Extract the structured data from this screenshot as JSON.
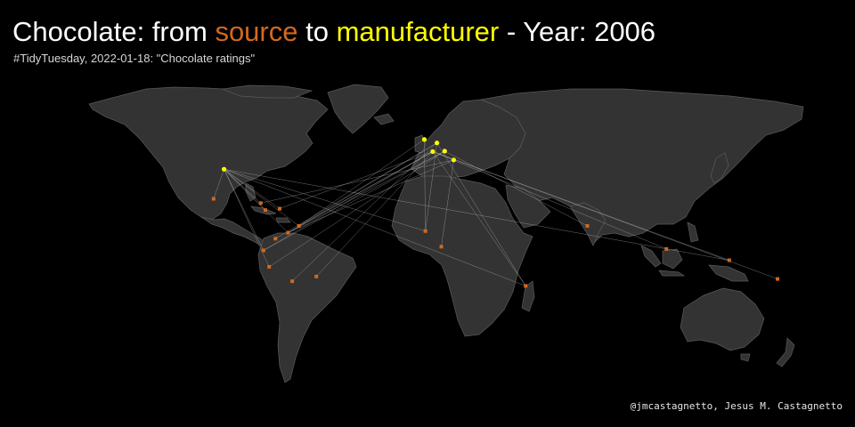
{
  "title": {
    "prefix": "Chocolate: from ",
    "source_word": "source",
    "middle": " to ",
    "manufacturer_word": "manufacturer",
    "suffix": " - Year: ",
    "year": "2006"
  },
  "subtitle": "#TidyTuesday, 2022-01-18: \"Chocolate ratings\"",
  "caption": "@jmcastagnetto, Jesus M. Castagnetto",
  "colors": {
    "background": "#000000",
    "land": "#333333",
    "border": "#5a5a5a",
    "source": "#d2691e",
    "manufacturer": "#ffff00",
    "flow": "#c8c8c8"
  },
  "map_data": {
    "projection": "equirectangular",
    "manufacturers": [
      {
        "name": "U.S.A.",
        "lon": -97,
        "lat": 38
      },
      {
        "name": "U.K.",
        "lon": -1.5,
        "lat": 52.5
      },
      {
        "name": "Belgium",
        "lon": 4.5,
        "lat": 50.8
      },
      {
        "name": "France",
        "lon": 2.5,
        "lat": 46.6
      },
      {
        "name": "Switzerland",
        "lon": 8.2,
        "lat": 46.8
      },
      {
        "name": "Italy",
        "lon": 12.5,
        "lat": 42.5
      }
    ],
    "sources": [
      {
        "name": "Mexico",
        "lon": -102,
        "lat": 23.6
      },
      {
        "name": "Cuba",
        "lon": -79.5,
        "lat": 21.5
      },
      {
        "name": "Jamaica",
        "lon": -77.3,
        "lat": 18.1
      },
      {
        "name": "Dominican Republic",
        "lon": -70.5,
        "lat": 18.8
      },
      {
        "name": "Trinidad",
        "lon": -61.3,
        "lat": 10.4
      },
      {
        "name": "Venezuela",
        "lon": -66.5,
        "lat": 7.1
      },
      {
        "name": "Colombia",
        "lon": -72.5,
        "lat": 4.2
      },
      {
        "name": "Ecuador",
        "lon": -78.2,
        "lat": -1.5
      },
      {
        "name": "Peru",
        "lon": -75.5,
        "lat": -9.5
      },
      {
        "name": "Bolivia",
        "lon": -64.5,
        "lat": -16.5
      },
      {
        "name": "Brazil",
        "lon": -53,
        "lat": -14.2
      },
      {
        "name": "Ghana",
        "lon": -1.0,
        "lat": 7.9
      },
      {
        "name": "Sao Tome",
        "lon": 6.6,
        "lat": 0.3
      },
      {
        "name": "Madagascar",
        "lon": 46.8,
        "lat": -18.8
      },
      {
        "name": "India",
        "lon": 76.2,
        "lat": 10.4
      },
      {
        "name": "Indonesia",
        "lon": 113.9,
        "lat": -0.8
      },
      {
        "name": "Papua New Guinea",
        "lon": 143.9,
        "lat": -6.3
      },
      {
        "name": "Vanuatu",
        "lon": 166.9,
        "lat": -15.4
      }
    ],
    "flows": [
      [
        "Mexico",
        "U.S.A."
      ],
      [
        "Cuba",
        "U.S.A."
      ],
      [
        "Jamaica",
        "U.S.A."
      ],
      [
        "Dominican Republic",
        "U.S.A."
      ],
      [
        "Venezuela",
        "U.S.A."
      ],
      [
        "Ecuador",
        "U.S.A."
      ],
      [
        "Peru",
        "U.S.A."
      ],
      [
        "Madagascar",
        "U.S.A."
      ],
      [
        "Ghana",
        "U.S.A."
      ],
      [
        "Trinidad",
        "U.S.A."
      ],
      [
        "Papua New Guinea",
        "U.S.A."
      ],
      [
        "Venezuela",
        "France"
      ],
      [
        "Venezuela",
        "Belgium"
      ],
      [
        "Venezuela",
        "Italy"
      ],
      [
        "Venezuela",
        "Switzerland"
      ],
      [
        "Ecuador",
        "France"
      ],
      [
        "Ecuador",
        "Switzerland"
      ],
      [
        "Trinidad",
        "U.K."
      ],
      [
        "Trinidad",
        "France"
      ],
      [
        "Dominican Republic",
        "France"
      ],
      [
        "Colombia",
        "Belgium"
      ],
      [
        "Peru",
        "Switzerland"
      ],
      [
        "Bolivia",
        "Belgium"
      ],
      [
        "Brazil",
        "France"
      ],
      [
        "Madagascar",
        "France"
      ],
      [
        "Madagascar",
        "Belgium"
      ],
      [
        "Sao Tome",
        "Italy"
      ],
      [
        "Ghana",
        "U.K."
      ],
      [
        "Ghana",
        "Belgium"
      ],
      [
        "India",
        "Switzerland"
      ],
      [
        "Indonesia",
        "France"
      ],
      [
        "Papua New Guinea",
        "France"
      ],
      [
        "Vanuatu",
        "France"
      ],
      [
        "Cuba",
        "Italy"
      ]
    ]
  }
}
